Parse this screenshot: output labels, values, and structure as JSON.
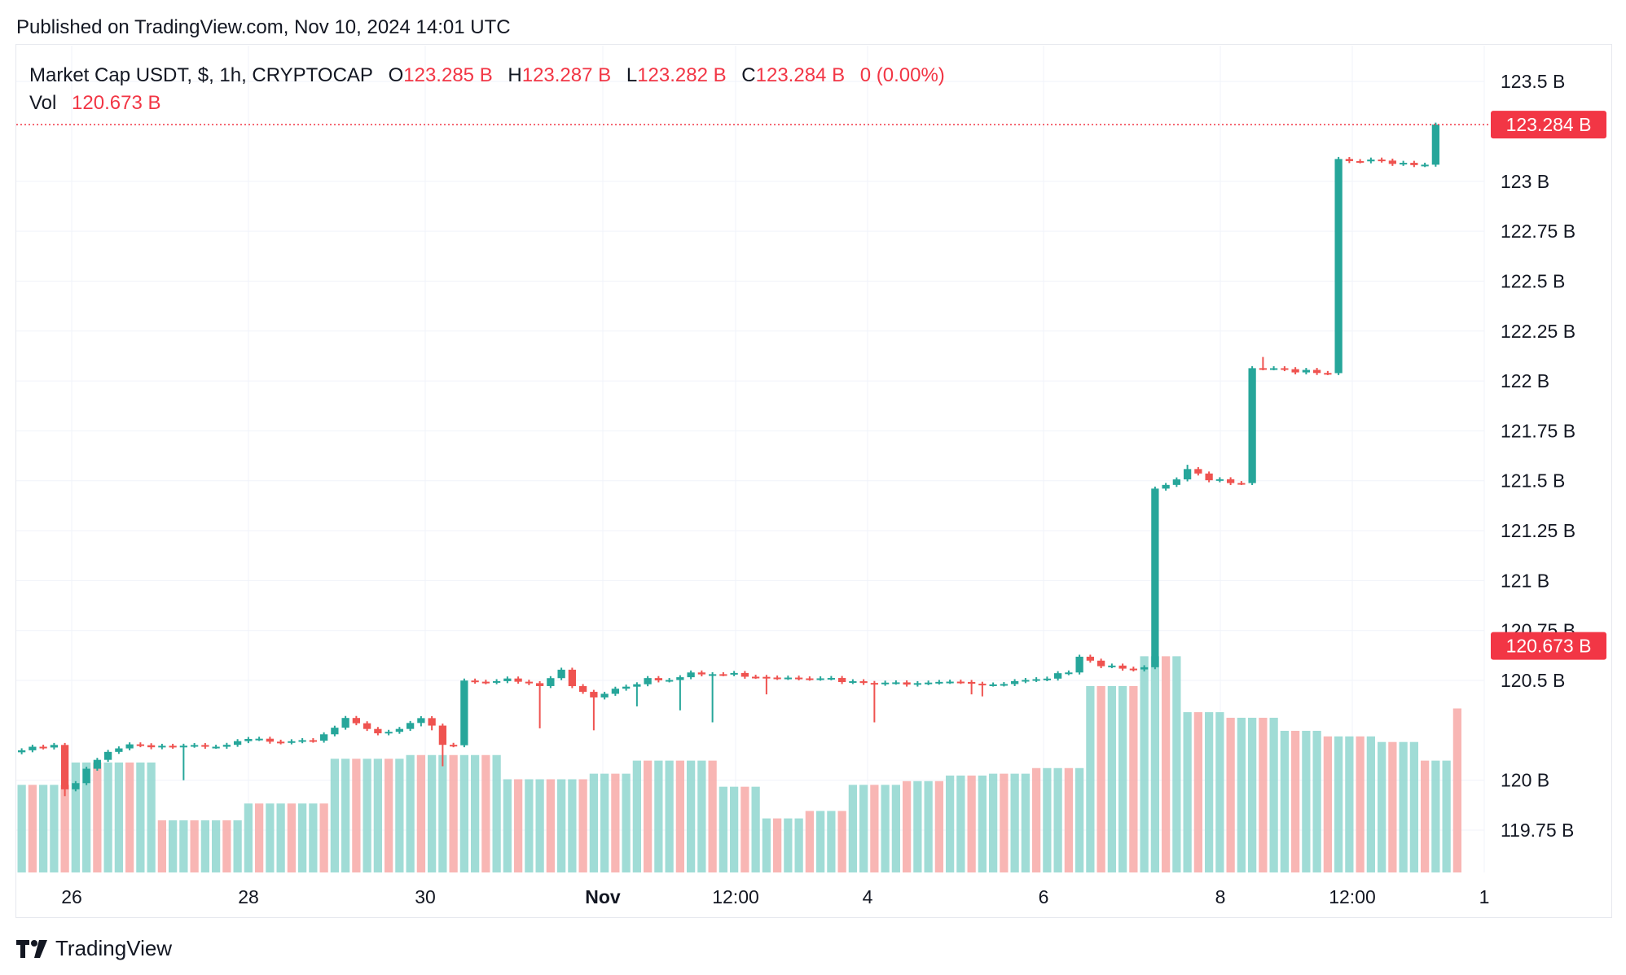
{
  "header": {
    "published": "Published on TradingView.com, Nov 10, 2024 14:01 UTC"
  },
  "legend": {
    "symbol": "Market Cap USDT, $, 1h, CRYPTOCAP",
    "o_label": "O",
    "o_value": "123.285 B",
    "h_label": "H",
    "h_value": "123.287 B",
    "l_label": "L",
    "l_value": "123.282 B",
    "c_label": "C",
    "c_value": "123.284 B",
    "change": "0 (0.00%)",
    "vol_label": "Vol",
    "vol_value": "120.673 B"
  },
  "footer": {
    "brand": "TradingView"
  },
  "colors": {
    "up": "#26a69a",
    "down": "#ef5350",
    "price_tag": "#f23645",
    "grid": "#f0f3fa",
    "text": "#131722"
  },
  "chart_data": {
    "type": "candlestick",
    "interval": "1h",
    "y_unit": "B",
    "ylim": [
      119.55,
      123.7
    ],
    "y_ticks": [
      {
        "value": 123.5,
        "label": "123.5 B"
      },
      {
        "value": 123.0,
        "label": "123 B"
      },
      {
        "value": 122.75,
        "label": "122.75 B"
      },
      {
        "value": 122.5,
        "label": "122.5 B"
      },
      {
        "value": 122.25,
        "label": "122.25 B"
      },
      {
        "value": 122.0,
        "label": "122 B"
      },
      {
        "value": 121.75,
        "label": "121.75 B"
      },
      {
        "value": 121.5,
        "label": "121.5 B"
      },
      {
        "value": 121.25,
        "label": "121.25 B"
      },
      {
        "value": 121.0,
        "label": "121 B"
      },
      {
        "value": 120.75,
        "label": "120.75 B"
      },
      {
        "value": 120.5,
        "label": "120.5 B"
      },
      {
        "value": 120.0,
        "label": "120 B"
      },
      {
        "value": 119.75,
        "label": "119.75 B"
      }
    ],
    "x_ticks": [
      {
        "label": "26",
        "bold": false
      },
      {
        "label": "28",
        "bold": false
      },
      {
        "label": "30",
        "bold": false
      },
      {
        "label": "Nov",
        "bold": true
      },
      {
        "label": "12:00",
        "bold": false
      },
      {
        "label": "4",
        "bold": false
      },
      {
        "label": "6",
        "bold": false
      },
      {
        "label": "8",
        "bold": false
      },
      {
        "label": "12:00",
        "bold": false
      },
      {
        "label": "1",
        "bold": false
      }
    ],
    "price_markers": [
      {
        "value": 123.284,
        "label": "123.284 B",
        "dotted_line": true
      },
      {
        "value": 120.673,
        "label": "120.673 B",
        "dotted_line": false
      }
    ],
    "price_path": [
      [
        0,
        120.15
      ],
      [
        3,
        120.17
      ],
      [
        4,
        119.95
      ],
      [
        5,
        119.98
      ],
      [
        6,
        120.05
      ],
      [
        8,
        120.15
      ],
      [
        10,
        120.18
      ],
      [
        14,
        120.17
      ],
      [
        18,
        120.16
      ],
      [
        21,
        120.2
      ],
      [
        24,
        120.2
      ],
      [
        27,
        120.21
      ],
      [
        29,
        120.27
      ],
      [
        30,
        120.3
      ],
      [
        33,
        120.23
      ],
      [
        35,
        120.25
      ],
      [
        37,
        120.3
      ],
      [
        38,
        120.28
      ],
      [
        39,
        120.18
      ],
      [
        40,
        120.18
      ],
      [
        41,
        120.5
      ],
      [
        45,
        120.5
      ],
      [
        48,
        120.47
      ],
      [
        50,
        120.55
      ],
      [
        51,
        120.47
      ],
      [
        53,
        120.42
      ],
      [
        55,
        120.46
      ],
      [
        57,
        120.49
      ],
      [
        58,
        120.52
      ],
      [
        60,
        120.5
      ],
      [
        62,
        120.53
      ],
      [
        66,
        120.53
      ],
      [
        70,
        120.52
      ],
      [
        74,
        120.52
      ],
      [
        76,
        120.49
      ],
      [
        80,
        120.48
      ],
      [
        84,
        120.5
      ],
      [
        87,
        120.5
      ],
      [
        90,
        120.47
      ],
      [
        92,
        120.49
      ],
      [
        95,
        120.5
      ],
      [
        97,
        120.55
      ],
      [
        98,
        120.63
      ],
      [
        100,
        120.58
      ],
      [
        104,
        120.56
      ],
      [
        105,
        121.45
      ],
      [
        107,
        121.5
      ],
      [
        108,
        121.55
      ],
      [
        110,
        121.5
      ],
      [
        113,
        121.5
      ],
      [
        114,
        122.07
      ],
      [
        116,
        122.07
      ],
      [
        118,
        122.05
      ],
      [
        121,
        122.03
      ],
      [
        122,
        123.1
      ],
      [
        126,
        123.1
      ],
      [
        129,
        123.09
      ],
      [
        130,
        123.09
      ],
      [
        131,
        123.284
      ]
    ],
    "wicks": [
      {
        "i": 4,
        "low": 119.92
      },
      {
        "i": 15,
        "low": 120.0
      },
      {
        "i": 37,
        "low": 120.27
      },
      {
        "i": 38,
        "low": 120.25
      },
      {
        "i": 39,
        "low": 120.07
      },
      {
        "i": 48,
        "low": 120.26
      },
      {
        "i": 53,
        "low": 120.25
      },
      {
        "i": 57,
        "low": 120.37
      },
      {
        "i": 61,
        "low": 120.35
      },
      {
        "i": 64,
        "low": 120.29
      },
      {
        "i": 69,
        "low": 120.43
      },
      {
        "i": 79,
        "low": 120.29
      },
      {
        "i": 88,
        "low": 120.43
      },
      {
        "i": 89,
        "low": 120.42
      },
      {
        "i": 108,
        "high": 121.58
      },
      {
        "i": 115,
        "high": 122.12
      }
    ],
    "volume": {
      "max_axis": 1.0,
      "segments": [
        {
          "from": 0,
          "to": 4,
          "level": 0.47
        },
        {
          "from": 5,
          "to": 12,
          "level": 0.59
        },
        {
          "from": 13,
          "to": 20,
          "level": 0.28
        },
        {
          "from": 21,
          "to": 28,
          "level": 0.37
        },
        {
          "from": 29,
          "to": 35,
          "level": 0.61
        },
        {
          "from": 36,
          "to": 44,
          "level": 0.63
        },
        {
          "from": 45,
          "to": 52,
          "level": 0.5
        },
        {
          "from": 53,
          "to": 56,
          "level": 0.53
        },
        {
          "from": 57,
          "to": 64,
          "level": 0.6
        },
        {
          "from": 65,
          "to": 68,
          "level": 0.46
        },
        {
          "from": 69,
          "to": 72,
          "level": 0.29
        },
        {
          "from": 73,
          "to": 76,
          "level": 0.33
        },
        {
          "from": 77,
          "to": 81,
          "level": 0.47
        },
        {
          "from": 82,
          "to": 85,
          "level": 0.49
        },
        {
          "from": 86,
          "to": 89,
          "level": 0.52
        },
        {
          "from": 90,
          "to": 93,
          "level": 0.53
        },
        {
          "from": 94,
          "to": 98,
          "level": 0.56
        },
        {
          "from": 99,
          "to": 103,
          "level": 1.0
        },
        {
          "from": 104,
          "to": 107,
          "level": 1.16
        },
        {
          "from": 108,
          "to": 111,
          "level": 0.86
        },
        {
          "from": 112,
          "to": 116,
          "level": 0.83
        },
        {
          "from": 117,
          "to": 120,
          "level": 0.76
        },
        {
          "from": 121,
          "to": 125,
          "level": 0.73
        },
        {
          "from": 126,
          "to": 129,
          "level": 0.7
        },
        {
          "from": 130,
          "to": 132,
          "level": 0.6
        },
        {
          "from": 133,
          "to": 133,
          "level": 0.88
        }
      ]
    }
  }
}
